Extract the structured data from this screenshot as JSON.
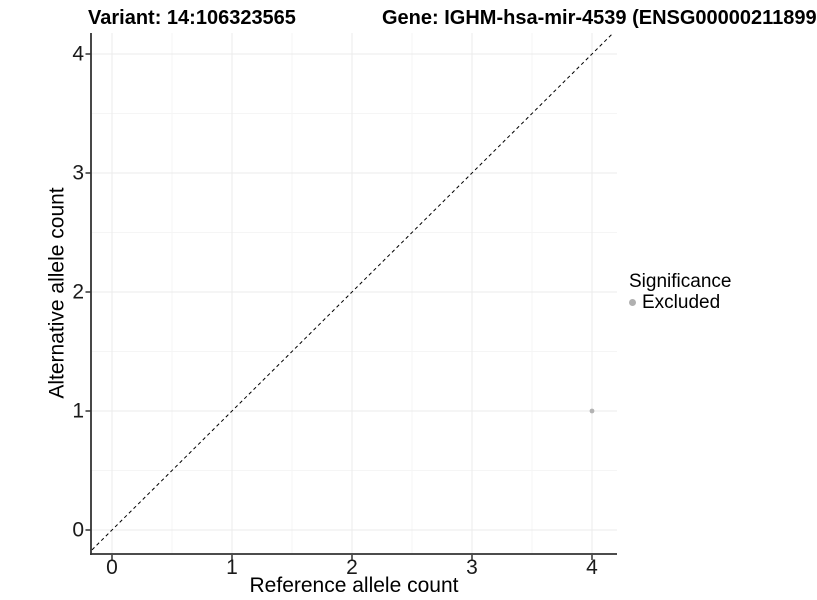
{
  "chart_data": {
    "type": "scatter",
    "titles": {
      "left": "Variant: 14:106323565",
      "right": "Gene: IGHM-hsa-mir-4539 (ENSG00000211899"
    },
    "xlabel": "Reference allele count",
    "ylabel": "Alternative allele count",
    "xlim": [
      0,
      4
    ],
    "ylim": [
      0,
      4
    ],
    "x_ticks": [
      0,
      1,
      2,
      3,
      4
    ],
    "y_ticks": [
      0,
      1,
      2,
      3,
      4
    ],
    "grid": "major+minor",
    "points": [
      {
        "x": 4,
        "y": 1,
        "series": "Excluded"
      }
    ],
    "identity_line": {
      "style": "dashed",
      "slope": 1,
      "intercept": 0
    },
    "legend": {
      "title": "Significance",
      "position": "right",
      "entries": [
        {
          "label": "Excluded",
          "color": "#b0b0b0",
          "marker": "circle"
        }
      ]
    },
    "colors": {
      "point": "#b3b3b3",
      "grid_major": "#ebebeb",
      "grid_minor": "#f5f5f5",
      "axis_line": "#333333",
      "tick_mark": "#333333",
      "identity_line": "#000000",
      "text": "#000000"
    }
  }
}
